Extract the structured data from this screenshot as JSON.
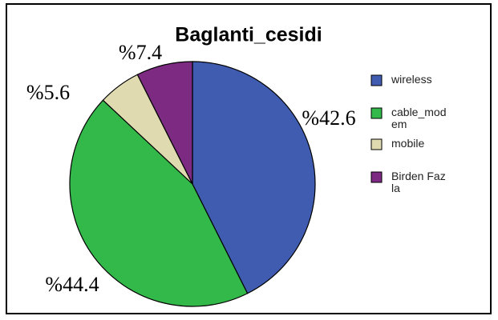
{
  "chart_data": {
    "type": "pie",
    "title": "Baglanti_cesidi",
    "categories": [
      "wireless",
      "cable_modem",
      "mobile",
      "Birden Fazla"
    ],
    "values": [
      42.6,
      44.4,
      5.6,
      7.4
    ],
    "value_labels": [
      "%42.6",
      "%44.4",
      "%5.6",
      "%7.4"
    ],
    "colors": [
      "#3f5cb0",
      "#33b84a",
      "#e0dab0",
      "#7d2a82"
    ],
    "legend": "right"
  }
}
